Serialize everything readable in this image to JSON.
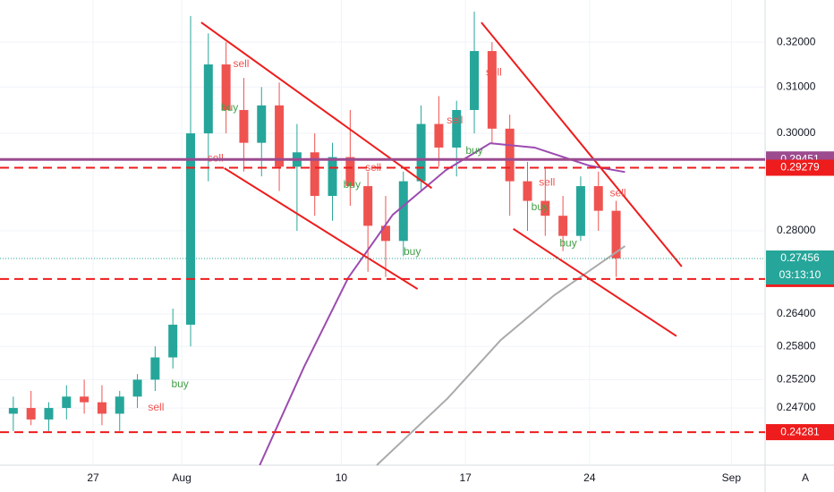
{
  "chart_data": {
    "type": "candlestick",
    "log_scale": true,
    "grid": true,
    "xlim": [
      -5.25,
      37.9
    ],
    "ylim": [
      0.2372,
      0.3297
    ],
    "xticks": [
      {
        "value": 0,
        "label": "27"
      },
      {
        "value": 5,
        "label": "Aug"
      },
      {
        "value": 14,
        "label": "10"
      },
      {
        "value": 21,
        "label": "17"
      },
      {
        "value": 28,
        "label": "24"
      },
      {
        "value": 36,
        "label": "Sep"
      }
    ],
    "yticks": [
      {
        "value": 0.32,
        "label": "0.32000"
      },
      {
        "value": 0.31,
        "label": "0.31000"
      },
      {
        "value": 0.3,
        "label": "0.30000"
      },
      {
        "value": 0.28,
        "label": "0.28000"
      },
      {
        "value": 0.264,
        "label": "0.26400"
      },
      {
        "value": 0.258,
        "label": "0.25800"
      },
      {
        "value": 0.252,
        "label": "0.25200"
      },
      {
        "value": 0.247,
        "label": "0.24700"
      }
    ],
    "up_color": "#26a69a",
    "down_color": "#ef5350",
    "x": [
      -4.5,
      -3.5,
      -2.5,
      -1.5,
      -0.5,
      0.5,
      1.5,
      2.5,
      3.5,
      4.5,
      5.5,
      6.5,
      7.5,
      8.5,
      9.5,
      10.5,
      11.5,
      12.5,
      13.5,
      14.5,
      15.5,
      16.5,
      17.5,
      18.5,
      19.5,
      20.5,
      21.5,
      22.5,
      23.5,
      24.5,
      25.5,
      26.5,
      27.5,
      28.5,
      29.5
    ],
    "open": [
      0.246,
      0.247,
      0.245,
      0.247,
      0.249,
      0.248,
      0.246,
      0.249,
      0.252,
      0.256,
      0.262,
      0.3,
      0.315,
      0.305,
      0.298,
      0.306,
      0.293,
      0.296,
      0.287,
      0.295,
      0.289,
      0.281,
      0.278,
      0.29,
      0.302,
      0.297,
      0.305,
      0.318,
      0.301,
      0.29,
      0.286,
      0.283,
      0.279,
      0.289,
      0.284
    ],
    "high": [
      0.249,
      0.25,
      0.248,
      0.251,
      0.252,
      0.251,
      0.25,
      0.253,
      0.258,
      0.265,
      0.326,
      0.322,
      0.32,
      0.312,
      0.31,
      0.311,
      0.302,
      0.3,
      0.298,
      0.305,
      0.292,
      0.287,
      0.292,
      0.306,
      0.308,
      0.307,
      0.327,
      0.32,
      0.304,
      0.294,
      0.293,
      0.287,
      0.291,
      0.292,
      0.286
    ],
    "low": [
      0.243,
      0.244,
      0.243,
      0.245,
      0.246,
      0.244,
      0.243,
      0.247,
      0.25,
      0.254,
      0.258,
      0.29,
      0.3,
      0.292,
      0.291,
      0.288,
      0.28,
      0.283,
      0.282,
      0.285,
      0.272,
      0.271,
      0.275,
      0.288,
      0.293,
      0.291,
      0.3,
      0.298,
      0.283,
      0.28,
      0.279,
      0.276,
      0.278,
      0.28,
      0.271
    ],
    "close": [
      0.247,
      0.245,
      0.247,
      0.249,
      0.248,
      0.246,
      0.249,
      0.252,
      0.256,
      0.262,
      0.3,
      0.315,
      0.305,
      0.298,
      0.306,
      0.293,
      0.296,
      0.287,
      0.295,
      0.289,
      0.281,
      0.278,
      0.29,
      0.302,
      0.297,
      0.305,
      0.318,
      0.301,
      0.29,
      0.286,
      0.283,
      0.279,
      0.289,
      0.284,
      0.2746
    ],
    "moving_averages": [
      {
        "color": "#9c4bb0",
        "x": [
          9.4,
          11.9,
          14.4,
          16.9,
          19.9,
          22.4,
          24.9,
          28.0,
          30.0
        ],
        "values": [
          0.2372,
          0.2543,
          0.2709,
          0.2832,
          0.2923,
          0.2979,
          0.297,
          0.2932,
          0.2919
        ]
      },
      {
        "color": "#aaaaaa",
        "x": [
          16.0,
          20.0,
          23.0,
          26.0,
          30.0
        ],
        "values": [
          0.2372,
          0.2487,
          0.2592,
          0.2675,
          0.277
        ]
      }
    ],
    "trendline_color": "#ee1c1c",
    "trendlines": [
      {
        "x": [
          6.1,
          19.1
        ],
        "values": [
          0.3245,
          0.2886
        ]
      },
      {
        "x": [
          7.4,
          18.3
        ],
        "values": [
          0.2927,
          0.2687
        ]
      },
      {
        "x": [
          21.9,
          33.2
        ],
        "values": [
          0.3245,
          0.273
        ]
      },
      {
        "x": [
          23.7,
          32.9
        ],
        "values": [
          0.2804,
          0.2599
        ]
      }
    ],
    "levels": [
      {
        "value": 0.29451,
        "color": "#9c4b8f",
        "style": "solid"
      },
      {
        "value": 0.29279,
        "color": "#ee1c1c",
        "style": "dashed"
      },
      {
        "value": 0.27061,
        "color": "#ee1c1c",
        "style": "dashed"
      },
      {
        "value": 0.24281,
        "color": "#ee1c1c",
        "style": "dashed"
      }
    ],
    "last_price": {
      "value": 0.27456,
      "color": "#26a69a",
      "countdown": "03:13:10"
    },
    "signal_colors": {
      "buy": "#43a047",
      "sell": "#ef5350"
    },
    "signals": [
      {
        "label": "sell",
        "x": 8.35,
        "price": 0.315
      },
      {
        "label": "buy",
        "x": 7.7,
        "price": 0.3054
      },
      {
        "label": "sell",
        "x": 6.9,
        "price": 0.2947
      },
      {
        "label": "buy",
        "x": 14.6,
        "price": 0.2892
      },
      {
        "label": "sell",
        "x": 15.8,
        "price": 0.2927
      },
      {
        "label": "buy",
        "x": 18.0,
        "price": 0.2758
      },
      {
        "label": "buy",
        "x": 21.5,
        "price": 0.2963
      },
      {
        "label": "sell",
        "x": 20.4,
        "price": 0.3027
      },
      {
        "label": "sell",
        "x": 22.6,
        "price": 0.3132
      },
      {
        "label": "sell",
        "x": 25.6,
        "price": 0.2897
      },
      {
        "label": "buy",
        "x": 25.2,
        "price": 0.2847
      },
      {
        "label": "buy",
        "x": 26.8,
        "price": 0.2775
      },
      {
        "label": "sell",
        "x": 29.6,
        "price": 0.2875
      },
      {
        "label": "buy",
        "x": 4.9,
        "price": 0.2511
      },
      {
        "label": "sell",
        "x": 3.55,
        "price": 0.247
      }
    ],
    "auto_scale_button": "A"
  }
}
